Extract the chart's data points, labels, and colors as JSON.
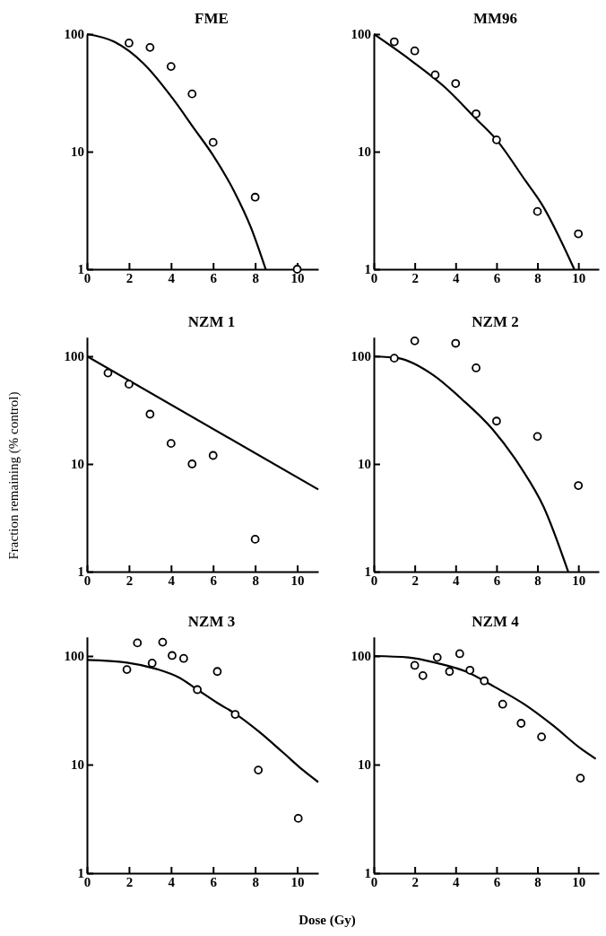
{
  "chart_data": [
    {
      "type": "line",
      "title": "FME",
      "log": "y",
      "xlim": [
        0,
        11
      ],
      "xticks": [
        0,
        2,
        4,
        6,
        8,
        10
      ],
      "ylim": [
        1,
        100
      ],
      "yticks": [
        1,
        10,
        100
      ],
      "series": [
        {
          "type": "scatter",
          "marker": "circle",
          "color": "#000000",
          "x": [
            2,
            3,
            4,
            5,
            6,
            8,
            10
          ],
          "values": [
            84,
            77,
            53,
            31,
            12,
            4.1,
            1
          ]
        },
        {
          "marker": "none",
          "color": "#000000",
          "x": [
            0,
            1.3,
            2.7,
            4.1,
            5.1,
            6,
            7,
            7.8,
            8.5
          ],
          "values": [
            100,
            86,
            56,
            28,
            15.7,
            9.3,
            4.6,
            2.26,
            1
          ]
        }
      ]
    },
    {
      "type": "line",
      "title": "MM96",
      "log": "y",
      "xlim": [
        0,
        11
      ],
      "xticks": [
        0,
        2,
        4,
        6,
        8,
        10
      ],
      "ylim": [
        1,
        100
      ],
      "yticks": [
        1,
        10,
        100
      ],
      "series": [
        {
          "type": "scatter",
          "marker": "circle",
          "color": "#000000",
          "x": [
            1,
            2,
            3,
            4,
            5,
            6,
            8,
            10
          ],
          "values": [
            86,
            72,
            45,
            38,
            21,
            12.6,
            3.1,
            2
          ]
        },
        {
          "marker": "none",
          "color": "#000000",
          "x": [
            0,
            1.8,
            3.5,
            5,
            6,
            7.4,
            8.2,
            9.8
          ],
          "values": [
            100,
            60,
            35,
            19,
            12.6,
            5.7,
            3.6,
            1
          ]
        }
      ]
    },
    {
      "type": "line",
      "title": "NZM 1",
      "ylabel": "Fraction remaining (% control)",
      "log": "y",
      "xlim": [
        0,
        11
      ],
      "xticks": [
        0,
        2,
        4,
        6,
        8,
        10
      ],
      "ylim": [
        1,
        150
      ],
      "yticks": [
        1,
        10,
        100
      ],
      "series": [
        {
          "type": "scatter",
          "marker": "circle",
          "color": "#000000",
          "x": [
            1,
            2,
            3,
            4,
            5,
            6,
            8
          ],
          "values": [
            70,
            55,
            29,
            15.5,
            10,
            12,
            2
          ]
        },
        {
          "marker": "none",
          "color": "#000000",
          "x": [
            0,
            11
          ],
          "values": [
            100,
            5.8
          ]
        }
      ]
    },
    {
      "type": "line",
      "title": "NZM 2",
      "log": "y",
      "xlim": [
        0,
        11
      ],
      "xticks": [
        0,
        2,
        4,
        6,
        8,
        10
      ],
      "ylim": [
        1,
        150
      ],
      "yticks": [
        1,
        10,
        100
      ],
      "series": [
        {
          "type": "scatter",
          "marker": "circle",
          "color": "#000000",
          "x": [
            1,
            2,
            4,
            5,
            6,
            8,
            10
          ],
          "values": [
            96,
            139,
            132,
            78,
            25,
            18,
            6.3
          ]
        },
        {
          "marker": "none",
          "color": "#000000",
          "x": [
            0,
            1.2,
            2.9,
            4.3,
            5.8,
            7.2,
            8.3,
            9.5
          ],
          "values": [
            100,
            96,
            67,
            40,
            21,
            9.2,
            4,
            1
          ]
        }
      ]
    },
    {
      "type": "line",
      "title": "NZM 3",
      "xlabel": "Dose (Gy)",
      "log": "y",
      "xlim": [
        0,
        11
      ],
      "xticks": [
        0,
        2,
        4,
        6,
        8,
        10
      ],
      "ylim": [
        1,
        150
      ],
      "yticks": [
        1,
        10,
        100
      ],
      "series": [
        {
          "type": "scatter",
          "marker": "circle",
          "color": "#000000",
          "x": [
            1.9,
            2.4,
            3.1,
            3.6,
            4.05,
            4.6,
            5.25,
            6.2,
            7.05,
            8.15,
            10.05
          ],
          "values": [
            75,
            132,
            86,
            134,
            101,
            95,
            49,
            72,
            29,
            8.9,
            3.2
          ]
        },
        {
          "marker": "none",
          "color": "#000000",
          "x": [
            0,
            1.9,
            3.3,
            4.4,
            5.25,
            6.2,
            7.1,
            8.2,
            9.35,
            10.3,
            11
          ],
          "values": [
            92,
            87,
            76,
            63,
            49,
            37,
            29,
            20,
            12.8,
            8.8,
            6.9
          ]
        }
      ]
    },
    {
      "type": "line",
      "title": "NZM 4",
      "log": "y",
      "xlim": [
        0,
        11
      ],
      "xticks": [
        0,
        2,
        4,
        6,
        8,
        10
      ],
      "ylim": [
        1,
        150
      ],
      "yticks": [
        1,
        10,
        100
      ],
      "series": [
        {
          "type": "scatter",
          "marker": "circle",
          "color": "#000000",
          "x": [
            2,
            2.4,
            3.1,
            3.7,
            4.2,
            4.7,
            5.4,
            6.3,
            7.2,
            8.2,
            10.1
          ],
          "values": [
            82,
            66,
            97,
            72,
            105,
            74,
            59,
            36,
            24,
            18,
            7.5
          ]
        },
        {
          "marker": "none",
          "color": "#000000",
          "x": [
            0,
            1.7,
            3.1,
            4.5,
            5.9,
            7.35,
            8.75,
            10.15,
            10.85
          ],
          "values": [
            100,
            97,
            86,
            72,
            52,
            36,
            23,
            13.9,
            11.3
          ]
        }
      ]
    }
  ]
}
